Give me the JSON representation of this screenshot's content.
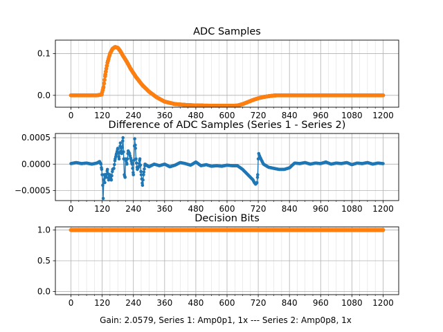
{
  "footer": "Gain: 2.0579, Series 1: Amp0p1, 1x --- Series 2: Amp0p8, 1x",
  "colors": {
    "series1": "#1f77b4",
    "series2": "#ff7f0e",
    "grid": "#b0b0b0"
  },
  "chart_data": [
    {
      "type": "scatter",
      "title": "ADC Samples",
      "xlim": [
        -60,
        1260
      ],
      "ylim": [
        -0.0285,
        0.1325
      ],
      "xticks": [
        "0",
        "120",
        "240",
        "360",
        "480",
        "600",
        "720",
        "840",
        "960",
        "1080",
        "1200"
      ],
      "xtick_values": [
        0,
        120,
        240,
        360,
        480,
        600,
        720,
        840,
        960,
        1080,
        1200
      ],
      "yticks": [
        "0.0",
        "0.1"
      ],
      "ytick_values": [
        0.0,
        0.1
      ],
      "grid": true,
      "minor_grid_step": 30,
      "series": [
        {
          "color": "#1f77b4",
          "x": [
            0,
            100,
            118,
            125,
            132,
            140,
            150,
            160,
            170,
            180,
            190,
            200,
            215,
            230,
            250,
            275,
            300,
            330,
            360,
            400,
            450,
            500,
            550,
            600,
            620,
            640,
            660,
            680,
            700,
            720,
            740,
            760,
            780,
            790,
            800,
            900,
            1000,
            1100,
            1200
          ],
          "y": [
            0,
            0,
            0.002,
            0.02,
            0.05,
            0.078,
            0.1,
            0.112,
            0.116,
            0.114,
            0.106,
            0.095,
            0.08,
            0.063,
            0.044,
            0.024,
            0.009,
            -0.005,
            -0.015,
            -0.021,
            -0.0235,
            -0.0245,
            -0.025,
            -0.025,
            -0.025,
            -0.0245,
            -0.021,
            -0.016,
            -0.011,
            -0.007,
            -0.004,
            -0.002,
            -0.0005,
            0,
            0,
            0,
            0,
            0,
            0
          ]
        },
        {
          "color": "#ff7f0e",
          "x": [
            0,
            100,
            118,
            125,
            132,
            140,
            150,
            160,
            170,
            180,
            190,
            200,
            215,
            230,
            250,
            275,
            300,
            330,
            360,
            400,
            450,
            500,
            550,
            600,
            620,
            640,
            660,
            680,
            700,
            720,
            740,
            760,
            780,
            790,
            800,
            900,
            1000,
            1100,
            1200
          ],
          "y": [
            0,
            0,
            0.002,
            0.02,
            0.05,
            0.078,
            0.1,
            0.112,
            0.116,
            0.114,
            0.106,
            0.095,
            0.08,
            0.063,
            0.044,
            0.024,
            0.009,
            -0.005,
            -0.015,
            -0.021,
            -0.0235,
            -0.0245,
            -0.025,
            -0.025,
            -0.025,
            -0.0245,
            -0.021,
            -0.016,
            -0.011,
            -0.007,
            -0.004,
            -0.002,
            -0.0005,
            0,
            0,
            0,
            0,
            0,
            0
          ]
        }
      ]
    },
    {
      "type": "line",
      "title": "Difference of ADC Samples (Series 1 - Series 2)",
      "xlim": [
        -60,
        1260
      ],
      "ylim": [
        -0.00069,
        0.00058
      ],
      "xticks": [
        "0",
        "120",
        "240",
        "360",
        "480",
        "600",
        "720",
        "840",
        "960",
        "1080",
        "1200"
      ],
      "xtick_values": [
        0,
        120,
        240,
        360,
        480,
        600,
        720,
        840,
        960,
        1080,
        1200
      ],
      "yticks": [
        "−0.0005",
        "0.0000",
        "0.0005"
      ],
      "ytick_values": [
        -0.0005,
        0.0,
        0.0005
      ],
      "grid": true,
      "minor_grid_step": 30,
      "series": [
        {
          "color": "#1f77b4",
          "x": [
            0,
            20,
            40,
            60,
            80,
            100,
            110,
            115,
            118,
            120,
            122,
            124,
            126,
            128,
            130,
            132,
            135,
            140,
            145,
            150,
            155,
            160,
            165,
            170,
            175,
            180,
            185,
            190,
            195,
            200,
            203,
            205,
            208,
            210,
            215,
            220,
            225,
            230,
            235,
            240,
            245,
            248,
            250,
            255,
            260,
            265,
            270,
            275,
            280,
            285,
            290,
            300,
            320,
            340,
            360,
            380,
            400,
            420,
            440,
            460,
            480,
            500,
            520,
            540,
            560,
            580,
            600,
            620,
            640,
            660,
            680,
            690,
            700,
            705,
            710,
            715,
            718,
            720,
            722,
            725,
            730,
            735,
            740,
            750,
            760,
            780,
            800,
            820,
            840,
            860,
            880,
            900,
            920,
            940,
            960,
            980,
            1000,
            1020,
            1040,
            1060,
            1080,
            1100,
            1120,
            1140,
            1160,
            1180,
            1200
          ],
          "y": [
            1e-05,
            3e-05,
            1e-05,
            2e-05,
            0.0,
            2e-05,
            5e-05,
            0.0,
            -0.0001,
            -0.0002,
            -0.0004,
            -0.00065,
            -0.0003,
            -0.0002,
            -0.00035,
            -0.0002,
            -0.00025,
            -0.0001,
            -0.0003,
            -0.0002,
            -0.0003,
            -0.0001,
            -8e-05,
            0.0001,
            0.0002,
            0.0003,
            0.0001,
            0.0004,
            0.0002,
            0.0005,
            0.0001,
            -0.0002,
            -0.00025,
            0.0001,
            0.0,
            0.00025,
            0.0002,
            0.0001,
            0.0,
            -0.0002,
            0.00048,
            0.0003,
            0.0001,
            -0.0001,
            -5e-05,
            0.0001,
            -0.0002,
            -0.0004,
            -0.00015,
            0.0,
            -2e-05,
            -5e-05,
            0.0,
            -3e-05,
            0.0,
            -5e-05,
            -2e-05,
            3e-05,
            1e-05,
            -2e-05,
            4e-05,
            -3e-05,
            -1e-05,
            -4e-05,
            -3e-05,
            -4e-05,
            -2e-05,
            -3e-05,
            -3e-05,
            -0.0001,
            -0.0002,
            -0.00025,
            -0.0003,
            -0.00035,
            -0.00038,
            -0.00035,
            -0.0002,
            0.0001,
            0.0002,
            0.00015,
            0.0001,
            5e-05,
            0.0,
            -3e-05,
            -6e-05,
            -8e-05,
            -0.0001,
            -0.0001,
            -7e-05,
            2e-05,
            1e-05,
            3e-05,
            0.0,
            2e-05,
            1e-05,
            4e-05,
            0.0,
            2e-05,
            1e-05,
            3e-05,
            -1e-05,
            2e-05,
            1e-05,
            3e-05,
            0.0,
            2e-05,
            1e-05
          ]
        }
      ]
    },
    {
      "type": "scatter",
      "title": "Decision Bits",
      "xlim": [
        -60,
        1260
      ],
      "ylim": [
        -0.05,
        1.05
      ],
      "xticks": [
        "0",
        "120",
        "240",
        "360",
        "480",
        "600",
        "720",
        "840",
        "960",
        "1080",
        "1200"
      ],
      "xtick_values": [
        0,
        120,
        240,
        360,
        480,
        600,
        720,
        840,
        960,
        1080,
        1200
      ],
      "yticks": [
        "0.0",
        "0.5",
        "1.0"
      ],
      "ytick_values": [
        0.0,
        0.5,
        1.0
      ],
      "grid": true,
      "minor_grid_step": 30,
      "series": [
        {
          "color": "#1f77b4",
          "x": [
            0,
            1200
          ],
          "y": [
            1,
            1
          ]
        },
        {
          "color": "#ff7f0e",
          "x": [
            0,
            1200
          ],
          "y": [
            1,
            1
          ]
        }
      ]
    }
  ]
}
